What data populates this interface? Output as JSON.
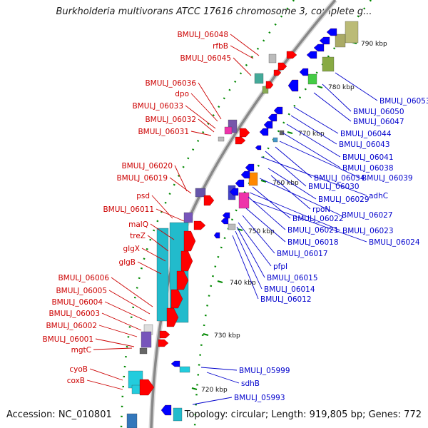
{
  "title": "Burkholderia multivorans ATCC 17616 chromosome 3, complete g...",
  "accession": "Accession: NC_010801",
  "summary": "Topology: circular; Length: 919,805 bp; Genes: 772",
  "colors": {
    "forward_label": "#cc0000",
    "reverse_label": "#0000cc",
    "forward_arrow": "#ff0000",
    "reverse_arrow": "#0000ff",
    "backbone": "#888888",
    "tick": "#008800"
  },
  "ticks": [
    "790 kbp",
    "780 kbp",
    "770 kbp",
    "760 kbp",
    "750 kbp",
    "740 kbp",
    "730 kbp",
    "720 kbp"
  ],
  "left_labels": [
    "BMULJ_06048",
    "rfbB",
    "BMULJ_06045",
    "BMULJ_06036",
    "dpo",
    "BMULJ_06033",
    "BMULJ_06032",
    "BMULJ_06031",
    "BMULJ_06020",
    "BMULJ_06019",
    "psd",
    "BMULJ_06011",
    "malQ",
    "treZ",
    "glgX",
    "glgB",
    "BMULJ_06006",
    "BMULJ_06005",
    "BMULJ_06004",
    "BMULJ_06003",
    "BMULJ_06002",
    "BMULJ_06001",
    "mgtC",
    "cyoB",
    "coxB"
  ],
  "right_labels": [
    "BMULJ_06053",
    "BMULJ_06050",
    "BMULJ_06047",
    "BMULJ_06044",
    "BMULJ_06043",
    "BMULJ_06041",
    "BMULJ_06038",
    "BMULJ_06039",
    "BMULJ_06034",
    "BMULJ_06030",
    "adhC",
    "BMULJ_06029",
    "rpoN",
    "BMULJ_06027",
    "BMULJ_06022",
    "BMULJ_06021",
    "BMULJ_06023",
    "BMULJ_06024",
    "BMULJ_06018",
    "BMULJ_06017",
    "pfpI",
    "BMULJ_06015",
    "BMULJ_06014",
    "BMULJ_06012",
    "BMULJ_05999",
    "sdhB",
    "BMULJ_05993"
  ]
}
